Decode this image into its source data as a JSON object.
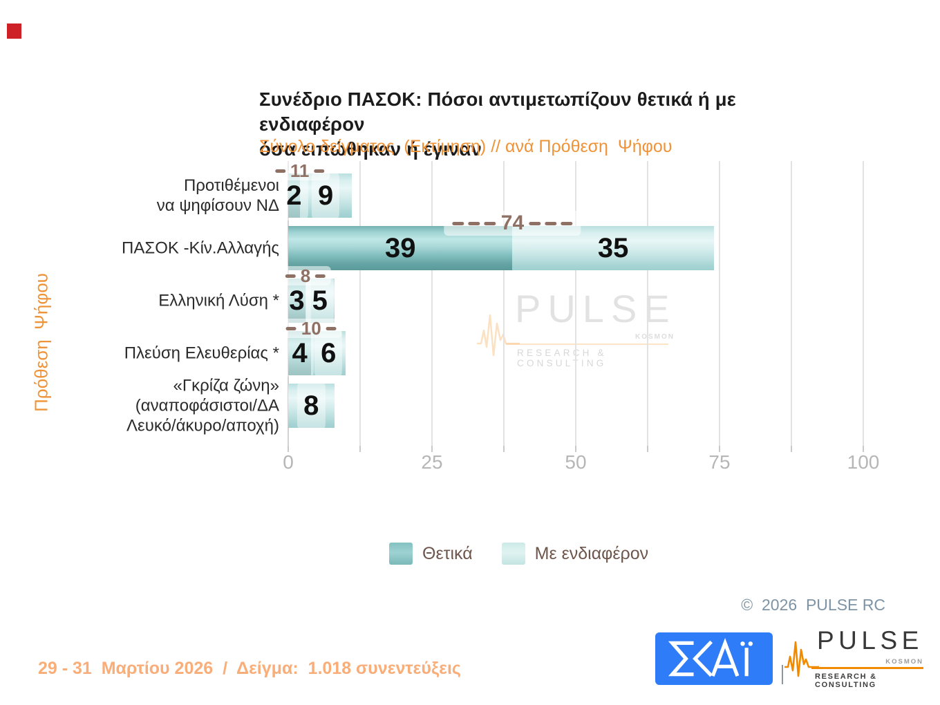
{
  "slide": {
    "red_marker_color": "#ce2127",
    "footer_note": "29 - 31  Μαρτίου 2026  /  Δείγμα:  1.018 συνεντεύξεις",
    "copyright": "©  2026  PULSE RC"
  },
  "chart_data": {
    "type": "bar",
    "orientation": "horizontal",
    "stacked": true,
    "title": "Συνέδριο ΠΑΣΟΚ: Πόσοι αντιμετωπίζουν θετικά ή με ενδιαφέρον όσα ειπώθηκαν ή έγιναν",
    "title_lines": [
      "Συνέδριο ΠΑΣΟΚ: Πόσοι αντιμετωπίζουν θετικά ή με ενδιαφέρον",
      "όσα ειπώθηκαν ή έγιναν"
    ],
    "subtitle": "Σύνολο δείγματος  (Εκτίμηση) // ανά Πρόθεση  Ψήφου",
    "ylabel": "Πρόθεση  Ψήφου",
    "xlabel": "",
    "xlim": [
      0,
      100
    ],
    "xticks": [
      0,
      25,
      50,
      75,
      100
    ],
    "gridline_step": 12.5,
    "grid": true,
    "legend_position": "bottom",
    "categories": [
      [
        "Προτιθέμενοι",
        "να ψηφίσουν ΝΔ"
      ],
      [
        "ΠΑΣΟΚ -Κίν.Αλλαγής"
      ],
      [
        "Ελληνική Λύση *"
      ],
      [
        "Πλεύση Ελευθερίας *"
      ],
      [
        "«Γκρίζα ζώνη»",
        "(αναποφάσιστοι/ΔΑ",
        "Λευκό/άκυρο/αποχή)"
      ]
    ],
    "series": [
      {
        "name": "Θετικά",
        "color": "#8bc6c6",
        "values": [
          2,
          39,
          3,
          4,
          null
        ]
      },
      {
        "name": "Με ενδιαφέρον",
        "color": "#cbe9e7",
        "values": [
          9,
          35,
          5,
          6,
          8
        ]
      }
    ],
    "totals": [
      11,
      74,
      8,
      10,
      null
    ],
    "total_label_color": "#8e7164",
    "value_label_color": "#101010"
  },
  "watermark": {
    "name": "PULSE",
    "kosmon": "KOSMON",
    "sub": "RESEARCH & CONSULTING"
  },
  "logos": {
    "skai_text": "ΣΚΑΪ",
    "skai_bg": "#2e7cf7",
    "pulse_name": "PULSE",
    "pulse_kosmon": "KOSMON",
    "pulse_sub": "RESEARCH & CONSULTING",
    "pulse_orange": "#f08a00"
  }
}
